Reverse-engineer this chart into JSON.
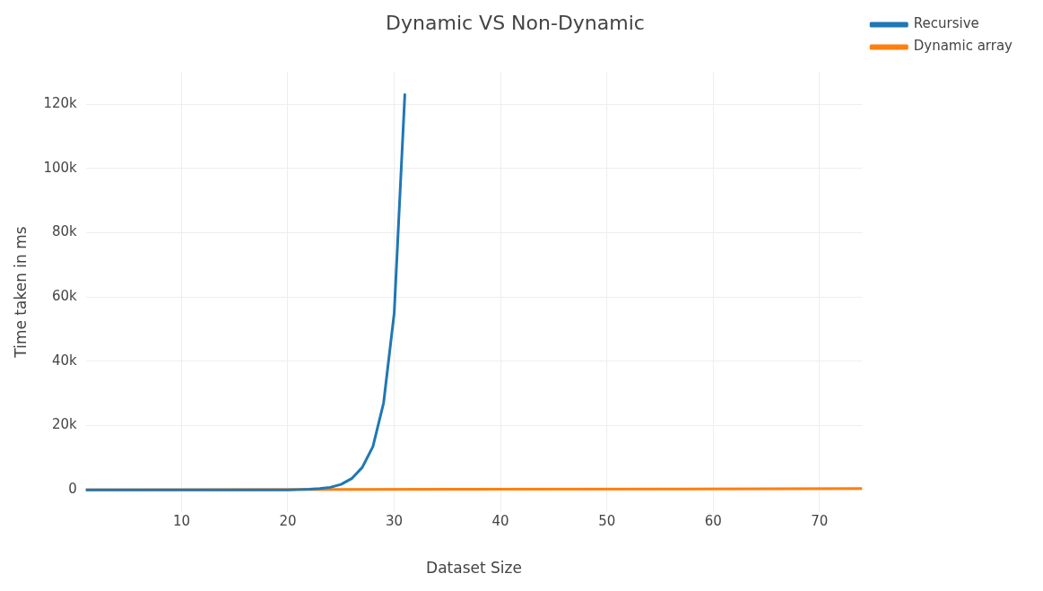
{
  "chart_data": {
    "type": "line",
    "title": "Dynamic VS Non-Dynamic",
    "xlabel": "Dataset Size",
    "ylabel": "Time taken in ms",
    "xlim": [
      1,
      74
    ],
    "xticks": [
      10,
      20,
      30,
      40,
      50,
      60,
      70
    ],
    "ylim": [
      -6800,
      130000
    ],
    "yticks": [
      {
        "value": 0,
        "label": "0"
      },
      {
        "value": 20000,
        "label": "20k"
      },
      {
        "value": 40000,
        "label": "40k"
      },
      {
        "value": 60000,
        "label": "60k"
      },
      {
        "value": 80000,
        "label": "80k"
      },
      {
        "value": 100000,
        "label": "100k"
      },
      {
        "value": 120000,
        "label": "120k"
      }
    ],
    "series": [
      {
        "name": "Recursive",
        "color": "#1f77b4",
        "x": [
          1,
          20,
          21,
          22,
          23,
          24,
          25,
          26,
          27,
          28,
          29,
          30,
          31
        ],
        "values": [
          0,
          0,
          100,
          200,
          400,
          800,
          1700,
          3500,
          7000,
          13500,
          27000,
          55000,
          123000
        ]
      },
      {
        "name": "Dynamic array",
        "color": "#ff7f0e",
        "x": [
          1,
          74
        ],
        "values": [
          0,
          400
        ]
      }
    ],
    "grid": true,
    "legend": "top right",
    "marker": "none",
    "line_style": "solid"
  }
}
